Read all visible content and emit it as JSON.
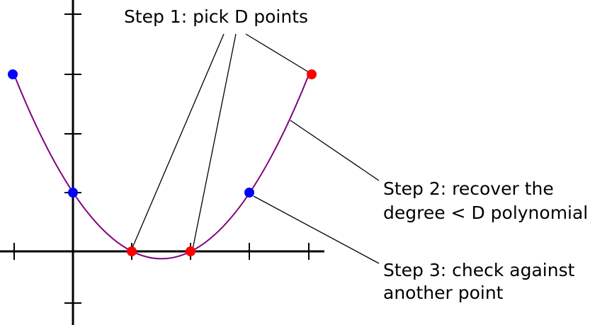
{
  "step1": "Step 1: pick D points",
  "step2": [
    "Step 2: recover the",
    "degree < D polynomial"
  ],
  "step3": [
    "Step 3: check against",
    "another point"
  ]
}
